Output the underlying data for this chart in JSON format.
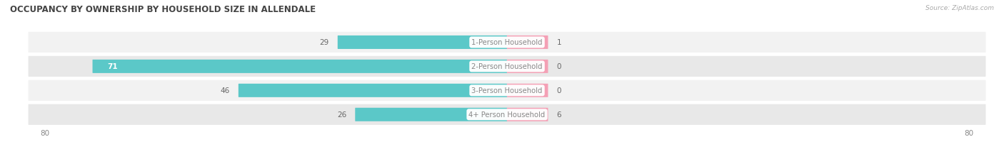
{
  "title": "OCCUPANCY BY OWNERSHIP BY HOUSEHOLD SIZE IN ALLENDALE",
  "source": "Source: ZipAtlas.com",
  "categories": [
    "1-Person Household",
    "2-Person Household",
    "3-Person Household",
    "4+ Person Household"
  ],
  "owner_values": [
    29,
    71,
    46,
    26
  ],
  "renter_values": [
    1,
    0,
    0,
    6
  ],
  "owner_color": "#5bc8c8",
  "renter_color": "#f4a0b5",
  "row_bg_colors": [
    "#f2f2f2",
    "#e8e8e8",
    "#f2f2f2",
    "#e8e8e8"
  ],
  "axis_limit": 80,
  "label_color": "#666666",
  "title_color": "#444444",
  "axis_label_color": "#888888",
  "center_label_color": "#888888",
  "renter_min_display": 7
}
